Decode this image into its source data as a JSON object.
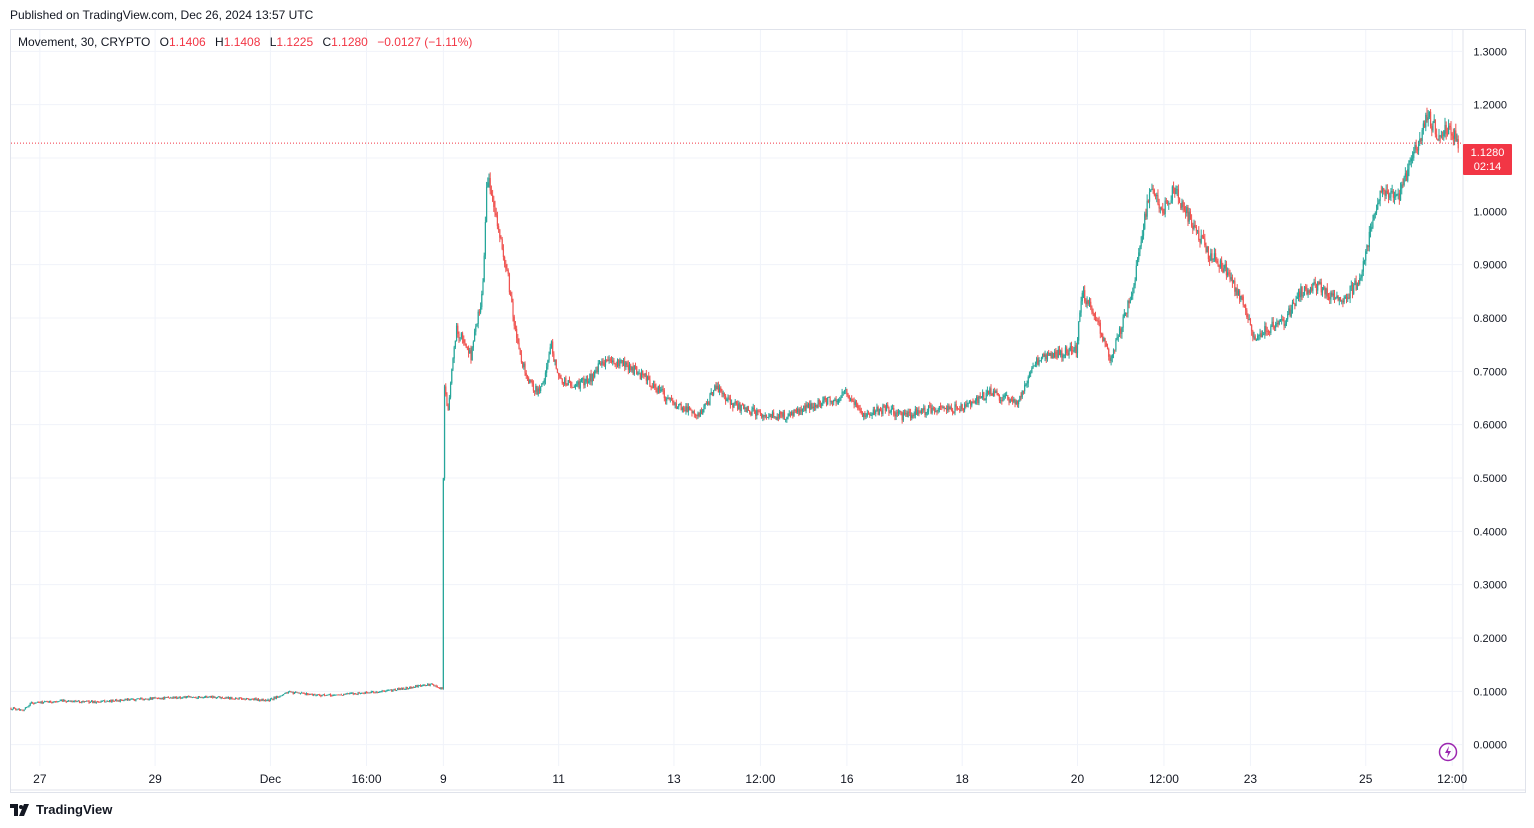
{
  "header": {
    "published": "Published on TradingView.com, Dec 26, 2024 13:57 UTC"
  },
  "legend": {
    "symbol": "Movement, 30, CRYPTO",
    "o_label": "O",
    "o_value": "1.1406",
    "h_label": "H",
    "h_value": "1.1408",
    "l_label": "L",
    "l_value": "1.1225",
    "c_label": "C",
    "c_value": "1.1280",
    "change": "−0.0127 (−1.11%)"
  },
  "price_badge": {
    "price": "1.1280",
    "countdown": "02:14"
  },
  "footer": {
    "brand": "TradingView"
  },
  "colors": {
    "up": "#26a69a",
    "down": "#ef5350",
    "badge": "#f23645",
    "grid": "#f0f3fa",
    "text": "#131722"
  },
  "icons": {
    "logo": "tradingview-logo-icon",
    "bolt": "lightning-bolt-icon"
  },
  "chart_data": {
    "type": "candlestick",
    "interval": "30",
    "last_price": 1.128,
    "ylim": [
      -0.04,
      1.34
    ],
    "y_ticks": [
      "1.3000",
      "1.2000",
      "1.1000",
      "1.0000",
      "0.9000",
      "0.8000",
      "0.7000",
      "0.6000",
      "0.5000",
      "0.4000",
      "0.3000",
      "0.2000",
      "0.1000",
      "0.0000"
    ],
    "y_tick_values": [
      1.3,
      1.2,
      1.1,
      1.0,
      0.9,
      0.8,
      0.7,
      0.6,
      0.5,
      0.4,
      0.3,
      0.2,
      0.1,
      0.0
    ],
    "x_ticks": [
      "27",
      "29",
      "Dec",
      "16:00",
      "9",
      "11",
      "13",
      "12:00",
      "16",
      "18",
      "20",
      "12:00",
      "23",
      "25",
      "12:00"
    ],
    "x_tick_days": [
      27,
      29,
      31,
      32.6667,
      34,
      36,
      38,
      39.5,
      41,
      43,
      45,
      46.5,
      48,
      50,
      51.5
    ],
    "x_range_days": [
      26.5,
      51.67
    ],
    "grid": true,
    "price_path": [
      [
        26.5,
        0.068
      ],
      [
        26.75,
        0.066
      ],
      [
        26.86,
        0.078
      ],
      [
        27.5,
        0.082
      ],
      [
        28.0,
        0.08
      ],
      [
        29.0,
        0.087
      ],
      [
        30.0,
        0.09
      ],
      [
        31.0,
        0.083
      ],
      [
        31.3,
        0.098
      ],
      [
        32.0,
        0.092
      ],
      [
        33.0,
        0.1
      ],
      [
        33.8,
        0.113
      ],
      [
        34.0,
        0.105
      ],
      [
        34.03,
        0.68
      ],
      [
        34.1,
        0.63
      ],
      [
        34.25,
        0.78
      ],
      [
        34.5,
        0.73
      ],
      [
        34.7,
        0.85
      ],
      [
        34.78,
        1.06
      ],
      [
        34.9,
        1.02
      ],
      [
        35.0,
        0.95
      ],
      [
        35.15,
        0.87
      ],
      [
        35.3,
        0.75
      ],
      [
        35.5,
        0.68
      ],
      [
        35.7,
        0.66
      ],
      [
        35.9,
        0.75
      ],
      [
        36.0,
        0.69
      ],
      [
        36.3,
        0.67
      ],
      [
        36.6,
        0.69
      ],
      [
        36.8,
        0.72
      ],
      [
        37.2,
        0.71
      ],
      [
        37.5,
        0.69
      ],
      [
        37.8,
        0.66
      ],
      [
        38.0,
        0.64
      ],
      [
        38.5,
        0.62
      ],
      [
        38.75,
        0.67
      ],
      [
        39.0,
        0.64
      ],
      [
        39.5,
        0.62
      ],
      [
        40.0,
        0.615
      ],
      [
        40.5,
        0.64
      ],
      [
        40.9,
        0.65
      ],
      [
        41.0,
        0.66
      ],
      [
        41.3,
        0.62
      ],
      [
        41.7,
        0.63
      ],
      [
        42.0,
        0.615
      ],
      [
        42.5,
        0.63
      ],
      [
        43.0,
        0.63
      ],
      [
        43.5,
        0.66
      ],
      [
        44.0,
        0.64
      ],
      [
        44.3,
        0.72
      ],
      [
        44.6,
        0.73
      ],
      [
        45.0,
        0.74
      ],
      [
        45.1,
        0.85
      ],
      [
        45.3,
        0.81
      ],
      [
        45.6,
        0.72
      ],
      [
        46.0,
        0.86
      ],
      [
        46.3,
        1.06
      ],
      [
        46.5,
        1.0
      ],
      [
        46.7,
        1.04
      ],
      [
        47.0,
        0.98
      ],
      [
        47.3,
        0.92
      ],
      [
        47.6,
        0.89
      ],
      [
        47.9,
        0.83
      ],
      [
        48.1,
        0.75
      ],
      [
        48.3,
        0.78
      ],
      [
        48.6,
        0.79
      ],
      [
        48.9,
        0.85
      ],
      [
        49.2,
        0.86
      ],
      [
        49.6,
        0.83
      ],
      [
        49.9,
        0.87
      ],
      [
        50.1,
        0.96
      ],
      [
        50.3,
        1.04
      ],
      [
        50.6,
        1.03
      ],
      [
        50.9,
        1.12
      ],
      [
        51.1,
        1.18
      ],
      [
        51.3,
        1.14
      ],
      [
        51.5,
        1.16
      ],
      [
        51.6,
        1.13
      ]
    ]
  }
}
